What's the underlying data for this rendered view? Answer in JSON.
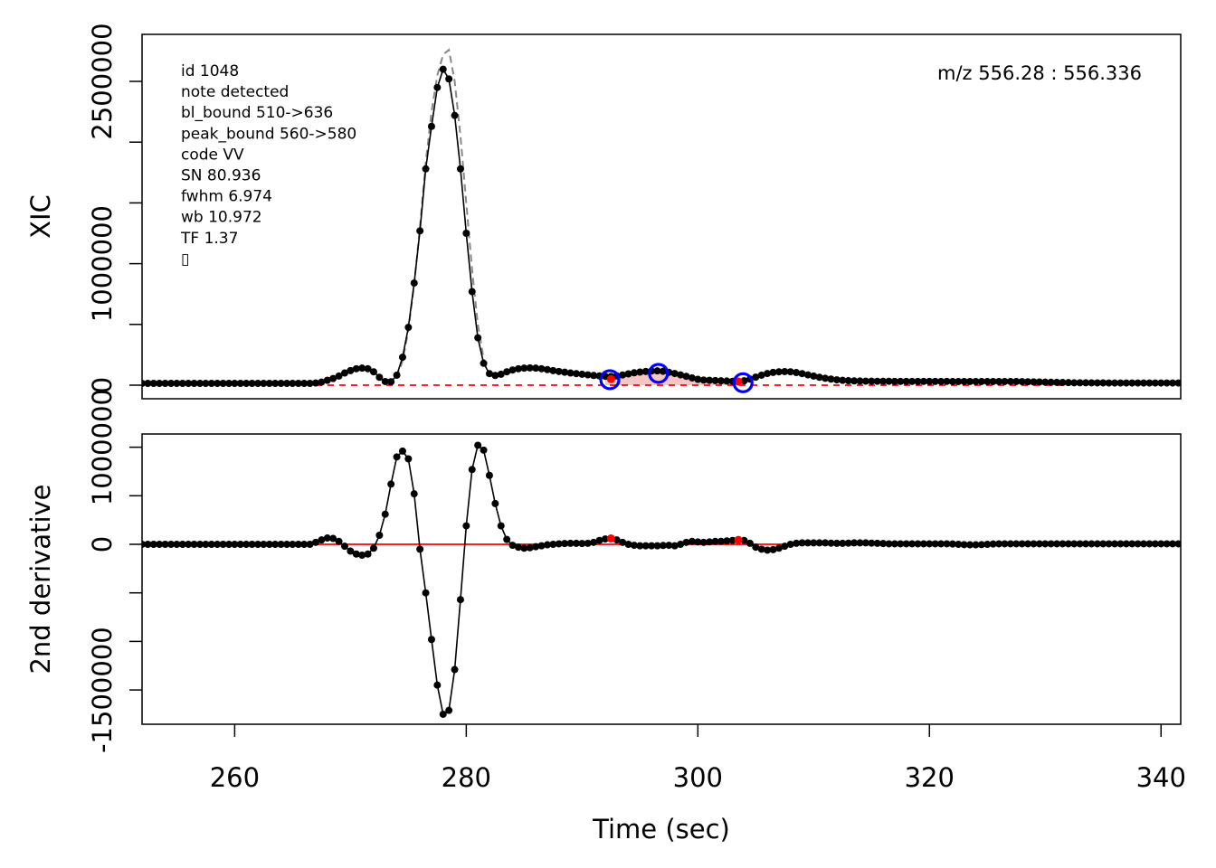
{
  "chart_data": [
    {
      "type": "line",
      "ylabel": "XIC",
      "annotations": [
        "id 1048",
        "note detected",
        "bl_bound 510->636",
        "peak_bound 560->580",
        "code VV",
        "SN 80.936",
        "fwhm 6.974",
        "wb 10.972",
        "TF 1.37",
        "▯"
      ],
      "mz_label": "m/z 556.28 : 556.336",
      "xlim": [
        252,
        341.7
      ],
      "ylim": [
        -111600,
        2887000
      ],
      "yticks": [
        0,
        1000000,
        2500000
      ],
      "yminor": [
        500000,
        1500000,
        2000000
      ],
      "color": "#000000",
      "x": [
        252,
        252.5,
        253,
        253.5,
        254,
        254.5,
        255,
        255.5,
        256,
        256.5,
        257,
        257.5,
        258,
        258.5,
        259,
        259.5,
        260,
        260.5,
        261,
        261.5,
        262,
        262.5,
        263,
        263.5,
        264,
        264.5,
        265,
        265.5,
        266,
        266.5,
        267,
        267.5,
        268,
        268.5,
        269,
        269.5,
        270,
        270.5,
        271,
        271.5,
        272,
        272.5,
        273,
        273.5,
        274,
        274.5,
        275,
        275.5,
        276,
        276.5,
        277,
        277.5,
        278,
        278.5,
        279,
        279.5,
        280,
        280.5,
        281,
        281.5,
        282,
        282.5,
        283,
        283.5,
        284,
        284.5,
        285,
        285.5,
        286,
        286.5,
        287,
        287.5,
        288,
        288.5,
        289,
        289.5,
        290,
        290.5,
        291,
        291.5,
        292,
        292.5,
        293,
        293.5,
        294,
        294.5,
        295,
        295.5,
        296,
        296.5,
        297,
        297.5,
        298,
        298.5,
        299,
        299.5,
        300,
        300.5,
        301,
        301.5,
        302,
        302.5,
        303,
        303.5,
        304,
        304.5,
        305,
        305.5,
        306,
        306.5,
        307,
        307.5,
        308,
        308.5,
        309,
        309.5,
        310,
        310.5,
        311,
        311.5,
        312,
        312.5,
        313,
        313.5,
        314,
        314.5,
        315,
        315.5,
        316,
        316.5,
        317,
        317.5,
        318,
        318.5,
        319,
        319.5,
        320,
        320.5,
        321,
        321.5,
        322,
        322.5,
        323,
        323.5,
        324,
        324.5,
        325,
        325.5,
        326,
        326.5,
        327,
        327.5,
        328,
        328.5,
        329,
        329.5,
        330,
        330.5,
        331,
        331.5,
        332,
        332.5,
        333,
        333.5,
        334,
        334.5,
        335,
        335.5,
        336,
        336.5,
        337,
        337.5,
        338,
        338.5,
        339,
        339.5,
        340,
        340.5,
        341,
        341.5
      ],
      "values": [
        15000,
        15000,
        15000,
        15000,
        15000,
        15000,
        15000,
        15000,
        15000,
        15000,
        15000,
        15000,
        15000,
        15000,
        15000,
        15000,
        15000,
        15000,
        15000,
        15000,
        15000,
        15000,
        15000,
        15000,
        15000,
        15000,
        15000,
        15000,
        15000,
        15000,
        18000,
        25000,
        40000,
        55000,
        75000,
        100000,
        120000,
        135000,
        140000,
        135000,
        110000,
        65000,
        30000,
        28000,
        82000,
        230000,
        476000,
        840000,
        1270000,
        1780000,
        2130000,
        2450000,
        2600000,
        2520000,
        2220000,
        1780000,
        1250000,
        770000,
        390000,
        180000,
        95000,
        80000,
        90000,
        110000,
        125000,
        135000,
        140000,
        142000,
        140000,
        135000,
        128000,
        120000,
        113000,
        107000,
        100000,
        95000,
        90000,
        85000,
        80000,
        76000,
        73000,
        72000,
        76000,
        84000,
        93000,
        102000,
        108000,
        113000,
        117000,
        118000,
        114000,
        106000,
        96000,
        85000,
        73000,
        60000,
        48000,
        42000,
        40000,
        38000,
        36000,
        34000,
        32000,
        31000,
        36000,
        50000,
        66000,
        82000,
        96000,
        105000,
        110000,
        112000,
        110000,
        104000,
        95000,
        85000,
        75000,
        65000,
        57000,
        50000,
        44000,
        40000,
        37000,
        35000,
        34000,
        33000,
        33000,
        32000,
        32000,
        32000,
        31000,
        31000,
        31000,
        31000,
        31000,
        31000,
        31000,
        31000,
        31000,
        31000,
        30000,
        30000,
        30000,
        30000,
        30000,
        30000,
        30000,
        30000,
        30000,
        30000,
        30000,
        30000,
        29000,
        28000,
        27000,
        26000,
        25000,
        24000,
        23000,
        22000,
        21000,
        20000,
        20000,
        20000,
        19000,
        19000,
        19000,
        18000,
        18000,
        18000,
        18000,
        18000,
        18000,
        18000,
        18000,
        18000,
        18000,
        18000,
        18000,
        18000
      ],
      "fit": {
        "color": "#888888",
        "x": [
          274,
          274.5,
          275,
          275.5,
          276,
          276.5,
          277,
          277.5,
          278,
          278.5,
          279,
          279.5,
          280,
          280.5,
          281,
          281.5,
          282
        ],
        "values": [
          60000,
          200000,
          450000,
          830000,
          1300000,
          1830000,
          2250000,
          2550000,
          2720000,
          2760000,
          2500000,
          2050000,
          1500000,
          950000,
          500000,
          220000,
          80000
        ]
      },
      "baseline": {
        "color": "#ff0000",
        "x": [
          267,
          332
        ],
        "values": [
          0,
          0
        ]
      },
      "shade": {
        "color": "#f4b6b6",
        "x": [
          292,
          304
        ]
      },
      "circles": {
        "color": "#0000ff",
        "x": [
          292.4,
          296.6,
          303.9
        ],
        "values": [
          45000,
          97000,
          20000
        ]
      },
      "red_points": {
        "color": "#ff0000",
        "x": [
          292.5,
          303.5
        ],
        "values": [
          50000,
          30000
        ]
      }
    },
    {
      "type": "line",
      "ylabel": "2nd derivative",
      "xlabel": "Time (sec)",
      "xlim": [
        252,
        341.7
      ],
      "ylim": [
        -1853000,
        1136000
      ],
      "xticks": [
        260,
        280,
        300,
        320,
        340
      ],
      "yticks": [
        -1500000,
        0,
        1000000
      ],
      "yminor": [
        -1000000,
        -500000,
        500000
      ],
      "color": "#000000",
      "x": [
        252,
        252.5,
        253,
        253.5,
        254,
        254.5,
        255,
        255.5,
        256,
        256.5,
        257,
        257.5,
        258,
        258.5,
        259,
        259.5,
        260,
        260.5,
        261,
        261.5,
        262,
        262.5,
        263,
        263.5,
        264,
        264.5,
        265,
        265.5,
        266,
        266.5,
        267,
        267.5,
        268,
        268.5,
        269,
        269.5,
        270,
        270.5,
        271,
        271.5,
        272,
        272.5,
        273,
        273.5,
        274,
        274.5,
        275,
        275.5,
        276,
        276.5,
        277,
        277.5,
        278,
        278.5,
        279,
        279.5,
        280,
        280.5,
        281,
        281.5,
        282,
        282.5,
        283,
        283.5,
        284,
        284.5,
        285,
        285.5,
        286,
        286.5,
        287,
        287.5,
        288,
        288.5,
        289,
        289.5,
        290,
        290.5,
        291,
        291.5,
        292,
        292.5,
        293,
        293.5,
        294,
        294.5,
        295,
        295.5,
        296,
        296.5,
        297,
        297.5,
        298,
        298.5,
        299,
        299.5,
        300,
        300.5,
        301,
        301.5,
        302,
        302.5,
        303,
        303.5,
        304,
        304.5,
        305,
        305.5,
        306,
        306.5,
        307,
        307.5,
        308,
        308.5,
        309,
        309.5,
        310,
        310.5,
        311,
        311.5,
        312,
        312.5,
        313,
        313.5,
        314,
        314.5,
        315,
        315.5,
        316,
        316.5,
        317,
        317.5,
        318,
        318.5,
        319,
        319.5,
        320,
        320.5,
        321,
        321.5,
        322,
        322.5,
        323,
        323.5,
        324,
        324.5,
        325,
        325.5,
        326,
        326.5,
        327,
        327.5,
        328,
        328.5,
        329,
        329.5,
        330,
        330.5,
        331,
        331.5,
        332,
        332.5,
        333,
        333.5,
        334,
        334.5,
        335,
        335.5,
        336,
        336.5,
        337,
        337.5,
        338,
        338.5,
        339,
        339.5,
        340,
        340.5,
        341,
        341.5
      ],
      "values": [
        0,
        0,
        0,
        0,
        0,
        0,
        0,
        0,
        0,
        0,
        0,
        0,
        0,
        0,
        0,
        0,
        0,
        0,
        0,
        0,
        0,
        0,
        0,
        0,
        0,
        0,
        0,
        0,
        0,
        0,
        20000,
        45000,
        65000,
        60000,
        30000,
        -20000,
        -70000,
        -100000,
        -112000,
        -100000,
        -40000,
        93000,
        310000,
        620000,
        900000,
        960000,
        880000,
        520000,
        -50000,
        -500000,
        -980000,
        -1450000,
        -1750000,
        -1710000,
        -1290000,
        -570000,
        190000,
        770000,
        1020000,
        970000,
        710000,
        420000,
        190000,
        50000,
        -10000,
        -30000,
        -40000,
        -35000,
        -25000,
        -15000,
        -5000,
        0,
        5000,
        8000,
        10000,
        10000,
        8000,
        10000,
        20000,
        40000,
        55000,
        60000,
        45000,
        20000,
        0,
        -10000,
        -15000,
        -15000,
        -15000,
        -15000,
        -12000,
        -10000,
        -15000,
        0,
        20000,
        30000,
        25000,
        20000,
        25000,
        30000,
        30000,
        35000,
        40000,
        45000,
        40000,
        10000,
        -30000,
        -50000,
        -60000,
        -55000,
        -40000,
        -20000,
        0,
        10000,
        15000,
        15000,
        15000,
        15000,
        15000,
        12000,
        10000,
        10000,
        12000,
        15000,
        15000,
        15000,
        12000,
        10000,
        8000,
        5000,
        5000,
        5000,
        5000,
        5000,
        5000,
        5000,
        5000,
        5000,
        5000,
        5000,
        3000,
        0,
        -3000,
        -5000,
        -5000,
        -3000,
        0,
        3000,
        5000,
        5000,
        5000,
        5000,
        5000,
        5000,
        5000,
        5000,
        5000,
        5000,
        5000,
        5000,
        5000,
        5000,
        5000,
        5000,
        5000,
        5000,
        5000,
        5000,
        5000,
        5000,
        5000,
        5000,
        5000,
        5000,
        5000,
        5000,
        5000,
        5000,
        5000,
        5000
      ],
      "zero_line": {
        "color": "#ff0000",
        "values": [
          0
        ]
      },
      "red_points": {
        "color": "#ff0000",
        "x": [
          292.5,
          303.5
        ],
        "values": [
          60000,
          45000
        ]
      }
    }
  ]
}
